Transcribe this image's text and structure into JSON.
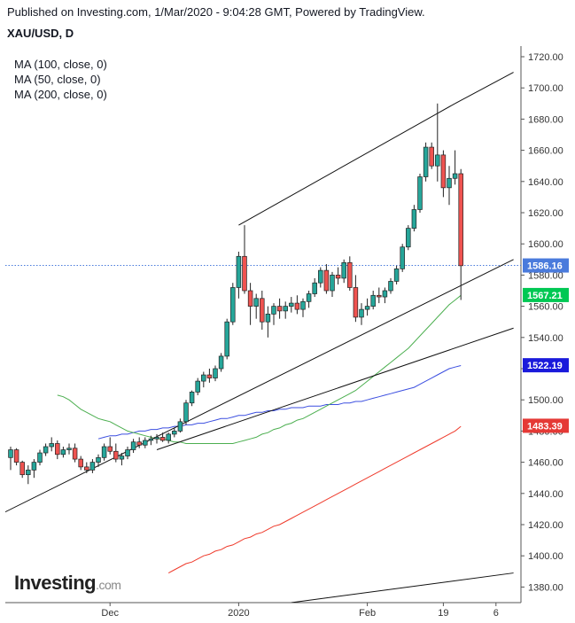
{
  "header": {
    "published": "Published on Investing.com, 1/Mar/2020 - 9:04:28 GMT, Powered by TradingView.",
    "symbol": "XAU/USD, D"
  },
  "legend": [
    "MA (100, close, 0)",
    "MA (50, close, 0)",
    "MA (200, close, 0)"
  ],
  "logo": {
    "brand": "Investing",
    "domain": ".com"
  },
  "colors": {
    "up": "#26a69a",
    "down": "#ef5350",
    "ma100": "#3c4fe0",
    "ma50": "#4caf50",
    "ma200": "#ef3b2c",
    "last": "#4a7bdc"
  },
  "chart_data": {
    "type": "candlestick",
    "title": "XAU/USD, D",
    "ylim": [
      1370,
      1725
    ],
    "y_ticks": [
      1380,
      1400,
      1420,
      1440,
      1460,
      1480,
      1500,
      1520,
      1540,
      1560,
      1580,
      1600,
      1620,
      1640,
      1660,
      1680,
      1700,
      1720
    ],
    "x_ticks": [
      {
        "label": "Dec",
        "index": 17
      },
      {
        "label": "2020",
        "index": 39
      },
      {
        "label": "Feb",
        "index": 61
      },
      {
        "label": "19",
        "index": 74
      },
      {
        "label": "6",
        "index": 83
      }
    ],
    "candles": [
      [
        1463,
        1470,
        1455,
        1468
      ],
      [
        1468,
        1469,
        1458,
        1460
      ],
      [
        1460,
        1461,
        1450,
        1452
      ],
      [
        1452,
        1458,
        1446,
        1455
      ],
      [
        1455,
        1462,
        1450,
        1460
      ],
      [
        1460,
        1468,
        1458,
        1466
      ],
      [
        1466,
        1472,
        1464,
        1470
      ],
      [
        1470,
        1476,
        1467,
        1472
      ],
      [
        1472,
        1474,
        1462,
        1465
      ],
      [
        1465,
        1470,
        1463,
        1468
      ],
      [
        1468,
        1472,
        1465,
        1469
      ],
      [
        1469,
        1472,
        1460,
        1462
      ],
      [
        1462,
        1464,
        1455,
        1457
      ],
      [
        1457,
        1460,
        1453,
        1455
      ],
      [
        1455,
        1462,
        1453,
        1460
      ],
      [
        1460,
        1465,
        1457,
        1463
      ],
      [
        1463,
        1472,
        1461,
        1470
      ],
      [
        1470,
        1476,
        1465,
        1467
      ],
      [
        1467,
        1472,
        1460,
        1462
      ],
      [
        1462,
        1466,
        1458,
        1464
      ],
      [
        1464,
        1470,
        1462,
        1468
      ],
      [
        1468,
        1475,
        1466,
        1473
      ],
      [
        1473,
        1476,
        1469,
        1471
      ],
      [
        1471,
        1476,
        1469,
        1474
      ],
      [
        1474,
        1477,
        1471,
        1475
      ],
      [
        1475,
        1478,
        1472,
        1476
      ],
      [
        1476,
        1479,
        1473,
        1474
      ],
      [
        1474,
        1479,
        1472,
        1478
      ],
      [
        1478,
        1482,
        1476,
        1480
      ],
      [
        1480,
        1488,
        1479,
        1486
      ],
      [
        1486,
        1500,
        1484,
        1498
      ],
      [
        1498,
        1506,
        1496,
        1505
      ],
      [
        1505,
        1514,
        1503,
        1512
      ],
      [
        1512,
        1518,
        1508,
        1516
      ],
      [
        1516,
        1520,
        1511,
        1514
      ],
      [
        1514,
        1522,
        1512,
        1520
      ],
      [
        1520,
        1530,
        1518,
        1528
      ],
      [
        1528,
        1552,
        1526,
        1550
      ],
      [
        1550,
        1575,
        1548,
        1572
      ],
      [
        1572,
        1595,
        1565,
        1592
      ],
      [
        1592,
        1612,
        1568,
        1570
      ],
      [
        1570,
        1575,
        1548,
        1560
      ],
      [
        1560,
        1568,
        1552,
        1565
      ],
      [
        1565,
        1570,
        1545,
        1550
      ],
      [
        1550,
        1560,
        1540,
        1555
      ],
      [
        1555,
        1562,
        1548,
        1560
      ],
      [
        1560,
        1565,
        1552,
        1557
      ],
      [
        1557,
        1563,
        1552,
        1560
      ],
      [
        1560,
        1566,
        1556,
        1562
      ],
      [
        1562,
        1567,
        1555,
        1558
      ],
      [
        1558,
        1565,
        1553,
        1563
      ],
      [
        1563,
        1570,
        1559,
        1568
      ],
      [
        1568,
        1578,
        1566,
        1575
      ],
      [
        1575,
        1585,
        1572,
        1583
      ],
      [
        1583,
        1587,
        1568,
        1570
      ],
      [
        1570,
        1582,
        1566,
        1580
      ],
      [
        1580,
        1585,
        1574,
        1578
      ],
      [
        1578,
        1590,
        1575,
        1588
      ],
      [
        1588,
        1592,
        1570,
        1572
      ],
      [
        1572,
        1580,
        1550,
        1553
      ],
      [
        1553,
        1562,
        1548,
        1558
      ],
      [
        1558,
        1565,
        1554,
        1560
      ],
      [
        1560,
        1570,
        1558,
        1567
      ],
      [
        1567,
        1572,
        1562,
        1566
      ],
      [
        1566,
        1572,
        1562,
        1570
      ],
      [
        1570,
        1578,
        1568,
        1576
      ],
      [
        1576,
        1586,
        1574,
        1584
      ],
      [
        1584,
        1600,
        1582,
        1598
      ],
      [
        1598,
        1612,
        1596,
        1610
      ],
      [
        1610,
        1625,
        1608,
        1622
      ],
      [
        1622,
        1645,
        1620,
        1643
      ],
      [
        1643,
        1665,
        1640,
        1662
      ],
      [
        1662,
        1665,
        1648,
        1650
      ],
      [
        1650,
        1690,
        1640,
        1657
      ],
      [
        1657,
        1660,
        1630,
        1636
      ],
      [
        1636,
        1650,
        1625,
        1642
      ],
      [
        1642,
        1660,
        1638,
        1645
      ],
      [
        1645,
        1648,
        1564,
        1586
      ]
    ],
    "ma50": [
      1503,
      1502,
      1500,
      1497,
      1494,
      1492,
      1490,
      1488,
      1487,
      1486,
      1484,
      1482,
      1480,
      1479,
      1478,
      1477,
      1476,
      1475,
      1475,
      1474,
      1473,
      1473,
      1472,
      1472,
      1472,
      1472,
      1472,
      1472,
      1472,
      1472,
      1472,
      1473,
      1474,
      1475,
      1476,
      1478,
      1479,
      1481,
      1482,
      1484,
      1485,
      1487,
      1488,
      1490,
      1492,
      1494,
      1496,
      1498,
      1500,
      1502,
      1504,
      1506,
      1509,
      1512,
      1515,
      1518,
      1521,
      1524,
      1527,
      1530,
      1533,
      1537,
      1541,
      1545,
      1549,
      1553,
      1557,
      1561,
      1564,
      1567
    ],
    "ma100": [
      1475,
      1476,
      1477,
      1477,
      1478,
      1478,
      1479,
      1480,
      1480,
      1481,
      1481,
      1482,
      1482,
      1483,
      1483,
      1484,
      1484,
      1485,
      1485,
      1486,
      1487,
      1488,
      1488,
      1489,
      1490,
      1490,
      1491,
      1492,
      1492,
      1493,
      1493,
      1494,
      1494,
      1495,
      1495,
      1495,
      1496,
      1496,
      1496,
      1497,
      1497,
      1497,
      1498,
      1498,
      1499,
      1499,
      1500,
      1501,
      1502,
      1503,
      1504,
      1505,
      1506,
      1507,
      1508,
      1510,
      1512,
      1514,
      1516,
      1518,
      1520,
      1521,
      1522
    ],
    "ma200": [
      1389,
      1391,
      1393,
      1395,
      1396,
      1398,
      1400,
      1401,
      1403,
      1404,
      1406,
      1407,
      1409,
      1411,
      1412,
      1414,
      1415,
      1417,
      1419,
      1420,
      1422,
      1424,
      1426,
      1428,
      1430,
      1432,
      1434,
      1436,
      1438,
      1440,
      1442,
      1444,
      1446,
      1448,
      1450,
      1452,
      1454,
      1456,
      1458,
      1460,
      1462,
      1464,
      1466,
      1468,
      1470,
      1472,
      1474,
      1476,
      1478,
      1480,
      1483
    ],
    "trendlines": [
      {
        "from": [
          -1,
          1428
        ],
        "to": [
          86,
          1590
        ]
      },
      {
        "from": [
          25,
          1468
        ],
        "to": [
          86,
          1546
        ]
      },
      {
        "from": [
          39,
          1612
        ],
        "to": [
          76,
          1690
        ]
      },
      {
        "from": [
          76,
          1690
        ],
        "to": [
          86,
          1710
        ]
      },
      {
        "from": [
          48,
          1370
        ],
        "to": [
          86,
          1389
        ]
      }
    ],
    "price_labels": [
      {
        "value": 1586.16,
        "text": "1586.16",
        "color": "#4a7bdc"
      },
      {
        "value": 1567.21,
        "text": "1567.21",
        "color": "#00c853"
      },
      {
        "value": 1522.19,
        "text": "1522.19",
        "color": "#1a1adb"
      },
      {
        "value": 1483.39,
        "text": "1483.39",
        "color": "#e53935"
      }
    ],
    "last_price": 1586.16
  }
}
